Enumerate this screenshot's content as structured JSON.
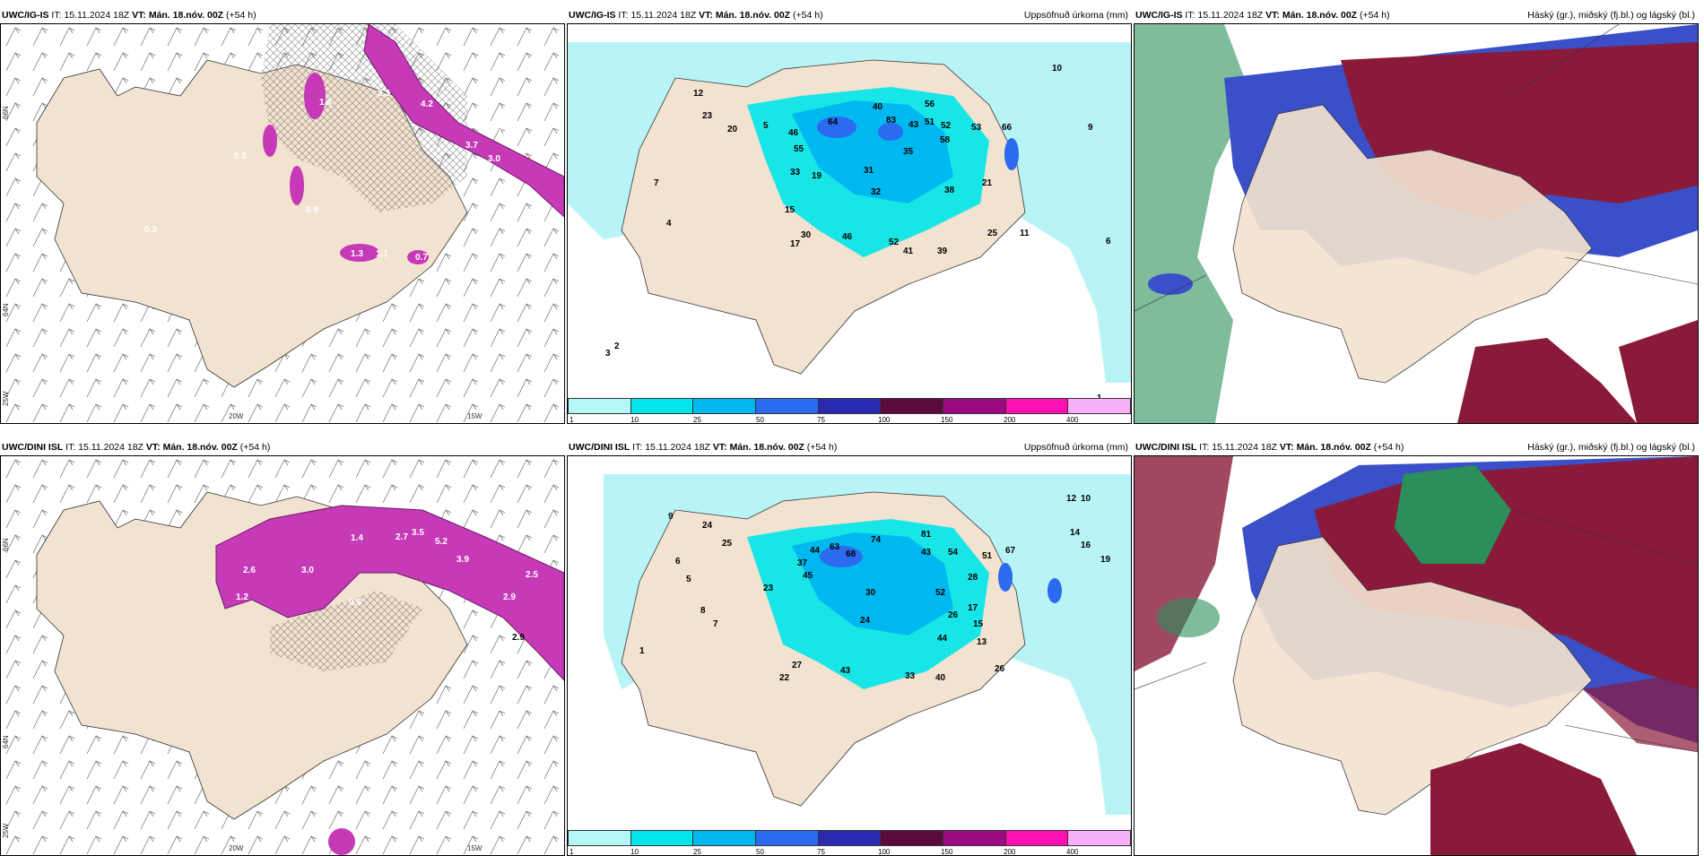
{
  "panels": [
    {
      "model": "UWC/IG-IS",
      "it_label": "IT:",
      "it_value": "15.11.2024 18Z",
      "vt_label": "VT: Mán. 18.nóv. 00Z",
      "lead": "(+54 h)",
      "right": ""
    },
    {
      "model": "UWC/IG-IS",
      "it_label": "IT:",
      "it_value": "15.11.2024 18Z",
      "vt_label": "VT: Mán. 18.nóv. 00Z",
      "lead": "(+54 h)",
      "right": "Uppsöfnuð úrkoma (mm)"
    },
    {
      "model": "UWC/IG-IS",
      "it_label": "IT:",
      "it_value": "15.11.2024 18Z",
      "vt_label": "VT: Mán. 18.nóv. 00Z",
      "lead": "(+54 h)",
      "right": "Háský (gr.), miðský (fj.bl.) og lágský (bl.)"
    },
    {
      "model": "UWC/DINI ISL",
      "it_label": "IT:",
      "it_value": "15.11.2024 18Z",
      "vt_label": "VT: Mán. 18.nóv. 00Z",
      "lead": "(+54 h)",
      "right": ""
    },
    {
      "model": "UWC/DINI ISL",
      "it_label": "IT:",
      "it_value": "15.11.2024 18Z",
      "vt_label": "VT: Mán. 18.nóv. 00Z",
      "lead": "(+54 h)",
      "right": "Uppsöfnuð úrkoma (mm)"
    },
    {
      "model": "UWC/DINI ISL",
      "it_label": "IT:",
      "it_value": "15.11.2024 18Z",
      "vt_label": "VT: Mán. 18.nóv. 00Z",
      "lead": "(+54 h)",
      "right": "Háský (gr.), miðský (fj.bl.) og lágský (bl.)"
    }
  ],
  "axes": {
    "lat66": "66N",
    "lat64": "64N",
    "lon25": "25W",
    "lon20": "20W",
    "lon15": "15W"
  },
  "colorbar": {
    "ticks": [
      "1",
      "10",
      "25",
      "50",
      "75",
      "100",
      "150",
      "200",
      "400"
    ],
    "colors": [
      "#b5f7f7",
      "#00e5e8",
      "#00b8f0",
      "#2c6af0",
      "#2a2ab0",
      "#5c0a3e",
      "#9c0a80",
      "#ff10b0",
      "#f7b0f7"
    ]
  },
  "colors": {
    "land": "#f2e2d0",
    "sea_precip": "#b8f4f6",
    "snow": "#c63ab8",
    "snow_dark": "#6b1b63",
    "high": "#2a8f5a",
    "mid": "#3a4fc8",
    "low": "#8a1a3a"
  },
  "snow_labels_top": [
    "2.3",
    "4.2",
    "3.7",
    "3.0",
    "1.6",
    "1.8",
    "0.9",
    "0.3",
    "0.7",
    "0.8",
    "1.1",
    "1.3"
  ],
  "snow_labels_bottom": [
    "2.7",
    "3.5",
    "5.2",
    "3.9",
    "2.9",
    "2.5",
    "2.6",
    "1.2",
    "3.0",
    "1.4",
    "0.8",
    "2.9"
  ],
  "precip_labels_top": [
    "12",
    "23",
    "20",
    "40",
    "64",
    "83",
    "56",
    "43",
    "51",
    "52",
    "58",
    "53",
    "66",
    "46",
    "55",
    "35",
    "21",
    "38",
    "33",
    "19",
    "31",
    "32",
    "15",
    "30",
    "46",
    "17",
    "52",
    "41",
    "39",
    "25",
    "11",
    "10",
    "9",
    "7",
    "6",
    "4",
    "3",
    "2",
    "5",
    "1"
  ],
  "precip_labels_bottom": [
    "24",
    "25",
    "37",
    "44",
    "63",
    "68",
    "74",
    "81",
    "43",
    "54",
    "51",
    "67",
    "45",
    "28",
    "23",
    "30",
    "52",
    "26",
    "17",
    "24",
    "44",
    "43",
    "33",
    "40",
    "26",
    "27",
    "22",
    "15",
    "13",
    "12",
    "10",
    "9",
    "8",
    "7",
    "6",
    "5",
    "1",
    "14",
    "16",
    "19"
  ]
}
